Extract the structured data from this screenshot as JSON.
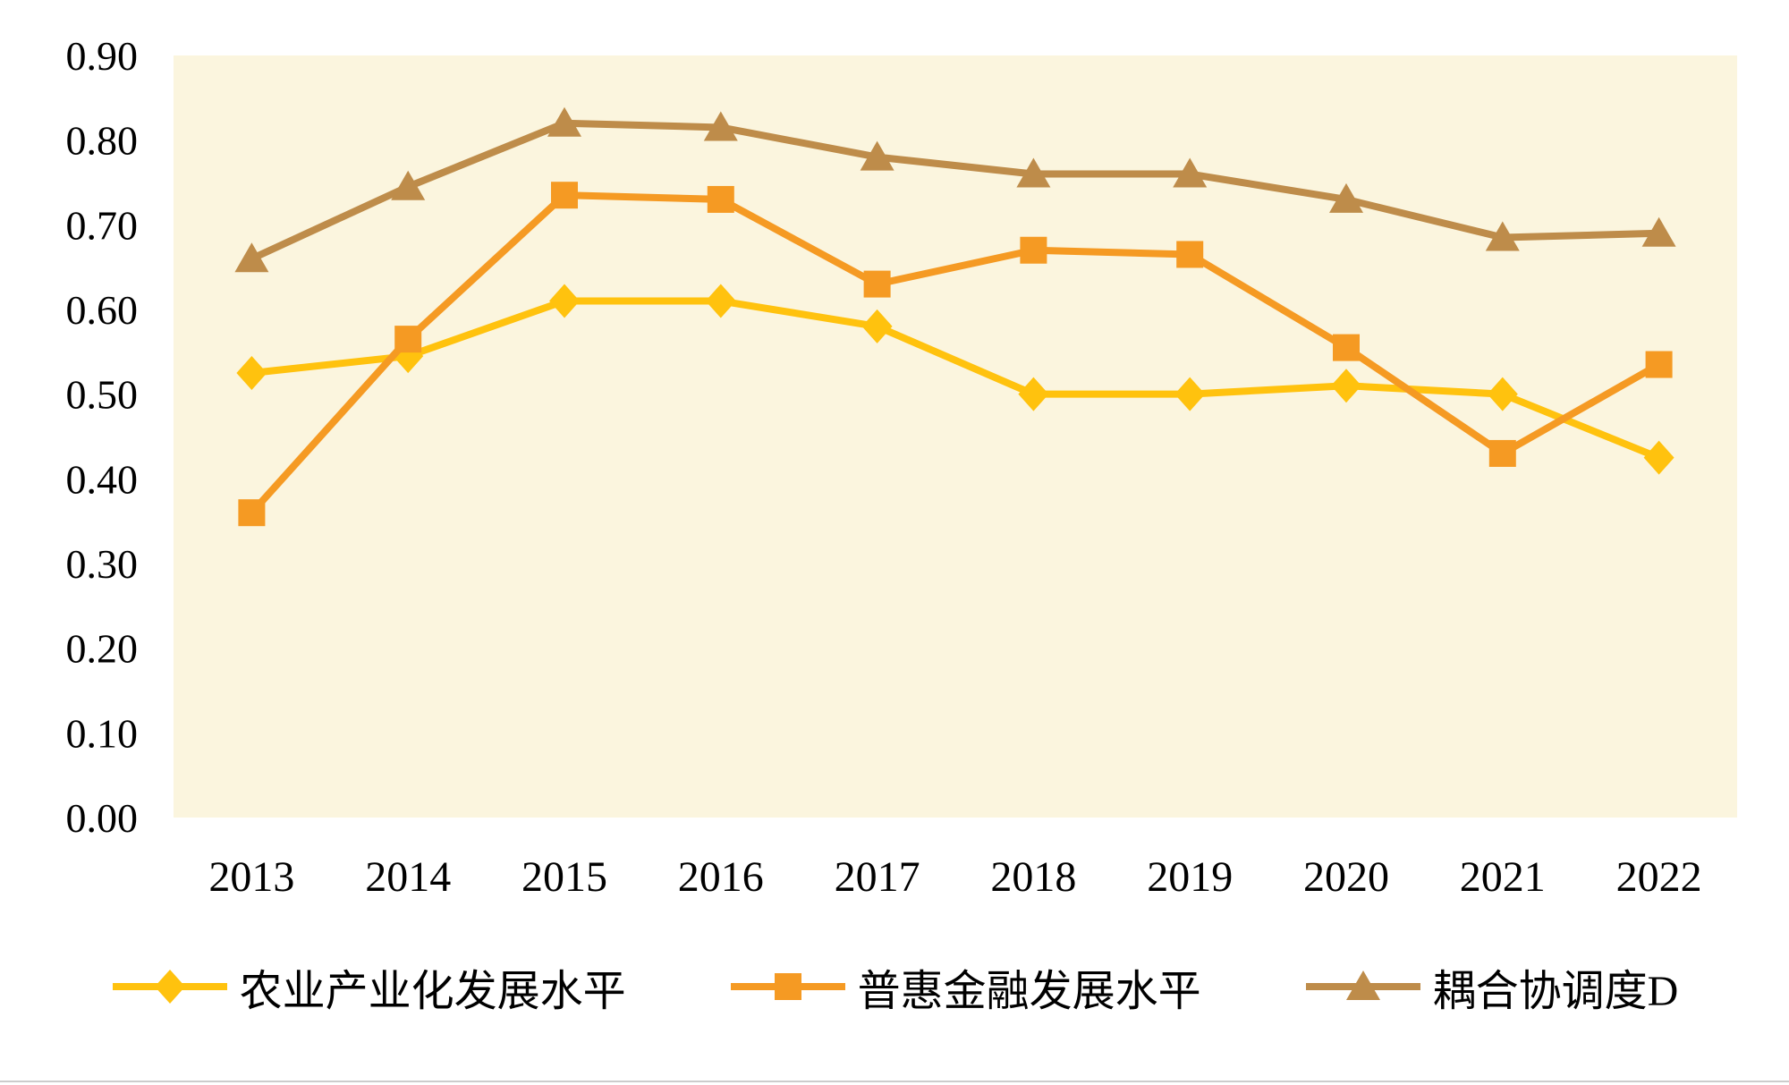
{
  "chart_data": {
    "type": "line",
    "x": [
      "2013",
      "2014",
      "2015",
      "2016",
      "2017",
      "2018",
      "2019",
      "2020",
      "2021",
      "2022"
    ],
    "series": [
      {
        "name": "农业产业化发展水平",
        "marker": "diamond",
        "color": "#FFC20E",
        "values": [
          0.525,
          0.545,
          0.61,
          0.61,
          0.58,
          0.5,
          0.5,
          0.51,
          0.5,
          0.425
        ]
      },
      {
        "name": "普惠金融发展水平",
        "marker": "square",
        "color": "#F59A23",
        "values": [
          0.36,
          0.565,
          0.735,
          0.73,
          0.63,
          0.67,
          0.665,
          0.555,
          0.43,
          0.535
        ]
      },
      {
        "name": "耦合协调度D",
        "marker": "triangle",
        "color": "#BE8C4A",
        "values": [
          0.66,
          0.745,
          0.82,
          0.815,
          0.78,
          0.76,
          0.76,
          0.73,
          0.685,
          0.69
        ]
      }
    ],
    "title": "",
    "xlabel": "",
    "ylabel": "",
    "ylim": [
      0,
      0.9
    ],
    "ytick_step": 0.1,
    "yticks": [
      "0.00",
      "0.10",
      "0.20",
      "0.30",
      "0.40",
      "0.50",
      "0.60",
      "0.70",
      "0.80",
      "0.90"
    ],
    "plot_bg": "#FBF5DE",
    "grid": false,
    "legend_position": "bottom"
  }
}
